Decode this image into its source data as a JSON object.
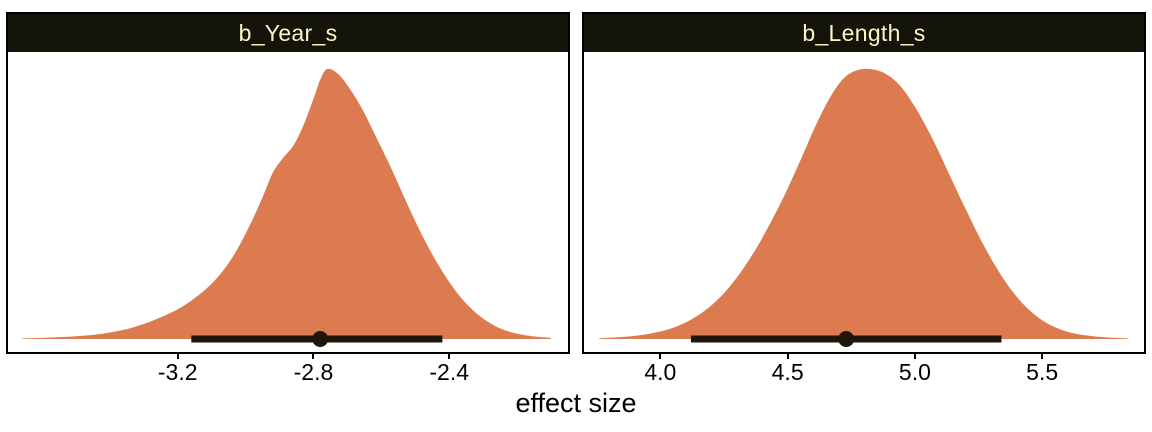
{
  "chart_data": {
    "type": "area",
    "subtype": "posterior-density-halfeye",
    "xlabel": "effect size",
    "style": {
      "density_fill": "#DC7B50",
      "strip_bg": "#14140B",
      "strip_text": "#FAF5C4",
      "panel_border": "#000000",
      "interval_color": "#20150A",
      "tick_color": "#000000"
    },
    "panels": [
      {
        "title": "b_Year_s",
        "xlim": [
          -3.7,
          -2.05
        ],
        "ticks": [
          -3.2,
          -2.8,
          -2.4
        ],
        "tick_labels": [
          "-3.2",
          "-2.8",
          "-2.4"
        ],
        "point_estimate": -2.78,
        "interval": [
          -3.16,
          -2.42
        ],
        "density": [
          [
            -3.66,
            0.002
          ],
          [
            -3.58,
            0.005
          ],
          [
            -3.5,
            0.01
          ],
          [
            -3.42,
            0.02
          ],
          [
            -3.34,
            0.04
          ],
          [
            -3.26,
            0.075
          ],
          [
            -3.18,
            0.125
          ],
          [
            -3.1,
            0.205
          ],
          [
            -3.04,
            0.3
          ],
          [
            -2.99,
            0.415
          ],
          [
            -2.95,
            0.525
          ],
          [
            -2.92,
            0.615
          ],
          [
            -2.89,
            0.67
          ],
          [
            -2.86,
            0.715
          ],
          [
            -2.83,
            0.79
          ],
          [
            -2.8,
            0.89
          ],
          [
            -2.78,
            0.96
          ],
          [
            -2.76,
            1.0
          ],
          [
            -2.73,
            0.985
          ],
          [
            -2.7,
            0.94
          ],
          [
            -2.66,
            0.86
          ],
          [
            -2.62,
            0.76
          ],
          [
            -2.57,
            0.63
          ],
          [
            -2.52,
            0.49
          ],
          [
            -2.47,
            0.36
          ],
          [
            -2.42,
            0.25
          ],
          [
            -2.37,
            0.16
          ],
          [
            -2.32,
            0.095
          ],
          [
            -2.27,
            0.052
          ],
          [
            -2.22,
            0.026
          ],
          [
            -2.16,
            0.011
          ],
          [
            -2.1,
            0.004
          ]
        ]
      },
      {
        "title": "b_Length_s",
        "xlim": [
          3.7,
          5.9
        ],
        "ticks": [
          4.0,
          4.5,
          5.0,
          5.5
        ],
        "tick_labels": [
          "4.0",
          "4.5",
          "5.0",
          "5.5"
        ],
        "point_estimate": 4.73,
        "interval": [
          4.12,
          5.34
        ],
        "density": [
          [
            3.76,
            0.003
          ],
          [
            3.86,
            0.008
          ],
          [
            3.96,
            0.02
          ],
          [
            4.06,
            0.045
          ],
          [
            4.16,
            0.095
          ],
          [
            4.26,
            0.18
          ],
          [
            4.36,
            0.31
          ],
          [
            4.46,
            0.48
          ],
          [
            4.54,
            0.64
          ],
          [
            4.61,
            0.79
          ],
          [
            4.67,
            0.9
          ],
          [
            4.72,
            0.965
          ],
          [
            4.77,
            0.995
          ],
          [
            4.82,
            1.0
          ],
          [
            4.88,
            0.985
          ],
          [
            4.94,
            0.94
          ],
          [
            5.0,
            0.86
          ],
          [
            5.07,
            0.74
          ],
          [
            5.14,
            0.6
          ],
          [
            5.21,
            0.46
          ],
          [
            5.28,
            0.33
          ],
          [
            5.35,
            0.22
          ],
          [
            5.42,
            0.135
          ],
          [
            5.49,
            0.076
          ],
          [
            5.56,
            0.04
          ],
          [
            5.64,
            0.018
          ],
          [
            5.74,
            0.007
          ],
          [
            5.84,
            0.002
          ]
        ]
      }
    ]
  }
}
